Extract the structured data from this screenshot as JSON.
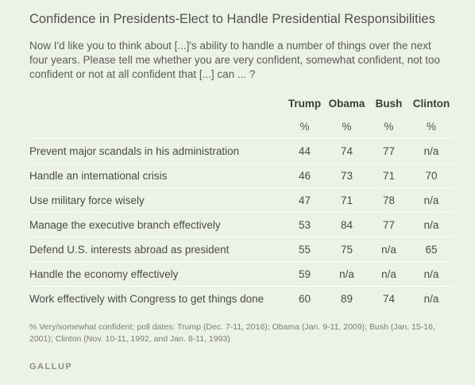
{
  "title": "Confidence in Presidents-Elect to Handle Presidential Responsibilities",
  "question": "Now I'd like you to think about [...]'s ability to handle a number of things over the next four years. Please tell me whether you are very confident, somewhat confident, not too confident or not at all confident that [...] can ... ?",
  "columns": [
    "Trump",
    "Obama",
    "Bush",
    "Clinton"
  ],
  "units": [
    "%",
    "%",
    "%",
    "%"
  ],
  "footnote": "% Very/somewhat confident; poll dates: Trump (Dec. 7-11, 2016); Obama (Jan. 9-11, 2009); Bush (Jan. 15-16, 2001); Clinton (Nov. 10-11, 1992, and Jan. 8-11, 1993)",
  "brand": "GALLUP",
  "chart_data": {
    "type": "table",
    "title": "Confidence in Presidents-Elect to Handle Presidential Responsibilities",
    "columns": [
      "Trump",
      "Obama",
      "Bush",
      "Clinton"
    ],
    "rows": [
      {
        "label": "Prevent major scandals in his administration",
        "values": [
          "44",
          "74",
          "77",
          "n/a"
        ]
      },
      {
        "label": "Handle an international crisis",
        "values": [
          "46",
          "73",
          "71",
          "70"
        ]
      },
      {
        "label": "Use military force wisely",
        "values": [
          "47",
          "71",
          "78",
          "n/a"
        ]
      },
      {
        "label": "Manage the executive branch effectively",
        "values": [
          "53",
          "84",
          "77",
          "n/a"
        ]
      },
      {
        "label": "Defend U.S. interests abroad as president",
        "values": [
          "55",
          "75",
          "n/a",
          "65"
        ]
      },
      {
        "label": "Handle the economy effectively",
        "values": [
          "59",
          "n/a",
          "n/a",
          "n/a"
        ]
      },
      {
        "label": "Work effectively with Congress to get things done",
        "values": [
          "60",
          "89",
          "74",
          "n/a"
        ]
      }
    ]
  }
}
